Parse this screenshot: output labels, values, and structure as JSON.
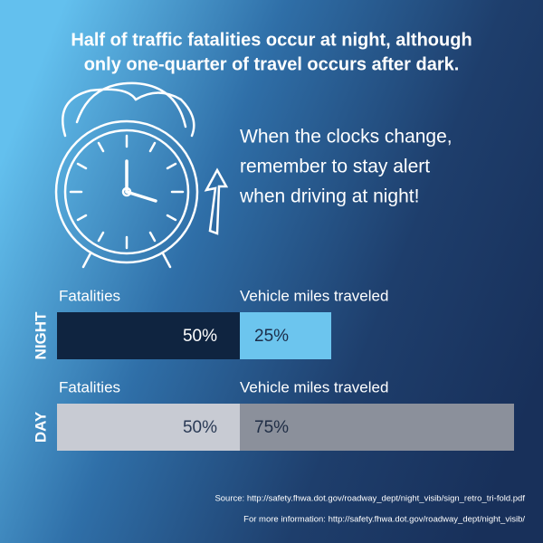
{
  "title": [
    "Half of traffic fatalities occur at night, although",
    "only one-quarter of travel occurs after dark."
  ],
  "message": [
    "When the clocks change,",
    "remember to stay alert",
    "when driving at night!"
  ],
  "rows": [
    {
      "label": "NIGHT",
      "bars": [
        {
          "name": "Fatalities",
          "value": 50,
          "value_label": "50%",
          "color": "#0f2440",
          "text_color": "#ffffff"
        },
        {
          "name": "Vehicle miles traveled",
          "value": 25,
          "value_label": "25%",
          "color": "#6cc5ee",
          "text_color": "#1c2e4a"
        }
      ]
    },
    {
      "label": "DAY",
      "bars": [
        {
          "name": "Fatalities",
          "value": 50,
          "value_label": "50%",
          "color": "#c8cbd3",
          "text_color": "#2a3a55"
        },
        {
          "name": "Vehicle miles traveled",
          "value": 75,
          "value_label": "75%",
          "color": "#8b909b",
          "text_color": "#1f2d45"
        }
      ]
    }
  ],
  "footer": [
    "Source: http://safety.fhwa.dot.gov/roadway_dept/night_visib/sign_retro_tri-fold.pdf",
    "For more information: http://safety.fhwa.dot.gov/roadway_dept/night_visib/"
  ]
}
